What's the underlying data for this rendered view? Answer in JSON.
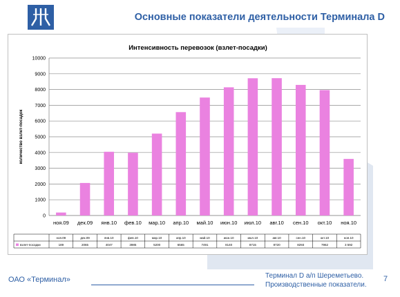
{
  "slide": {
    "title": "Основные показатели деятельности Терминала D",
    "footer_company": "ОАО «Терминал»",
    "footer_note_line1": "Терминал D а/п Шереметьево.",
    "footer_note_line2": "Производственные показатели.",
    "page_number": "7"
  },
  "chart_data": {
    "type": "bar",
    "title": "Интенсивность перевозок (взлет-посадки)",
    "xlabel": "",
    "ylabel": "количество взлет-посадок",
    "categories": [
      "ноя.09",
      "дек.09",
      "янв.10",
      "фев.10",
      "мар.10",
      "апр.10",
      "май.10",
      "июн.10",
      "июл.10",
      "авг.10",
      "сен.10",
      "окт.10",
      "ноя.10"
    ],
    "table_headers": [
      "ноя.09",
      "дек.09",
      "янв.10",
      "фев.10",
      "мар.10",
      "апр.10",
      "май.10",
      "июн.10",
      "июл.10",
      "авг.10",
      "сен.10",
      "окт.10",
      "ноя.10"
    ],
    "series": [
      {
        "name": "взлет-посадки",
        "values": [
          189,
          2065,
          4047,
          3985,
          5200,
          6565,
          7491,
          8140,
          8715,
          8720,
          8293,
          7962,
          3592
        ],
        "labels": [
          "189",
          "2065",
          "4047",
          "3985",
          "5200",
          "6565",
          "7491",
          "8140",
          "8715",
          "8720",
          "8293",
          "7962",
          "3 592"
        ]
      }
    ],
    "ylim": [
      0,
      10000
    ],
    "yticks": [
      0,
      1000,
      2000,
      3000,
      4000,
      5000,
      6000,
      7000,
      8000,
      9000,
      10000
    ],
    "grid": true,
    "bar_color": "#ea82e0",
    "legend": "data-table"
  },
  "colors": {
    "accent": "#2e5fa5",
    "background_shape": "#dde4f0"
  }
}
